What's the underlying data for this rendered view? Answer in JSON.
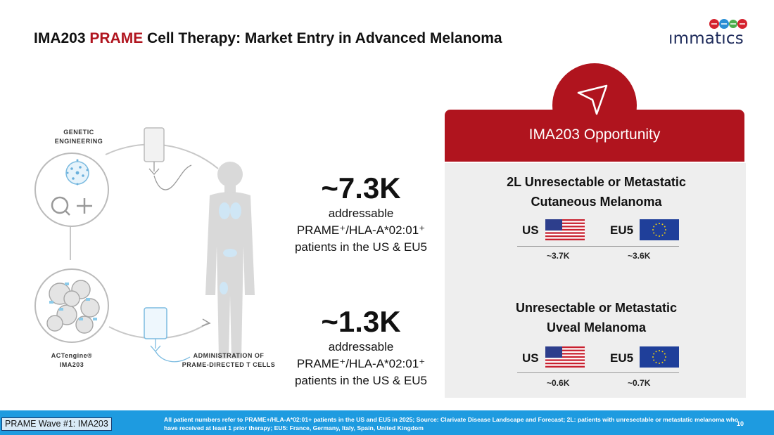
{
  "header": {
    "title_prefix": "IMA203 ",
    "title_accent": "PRAME",
    "title_suffix": " Cell Therapy: Market Entry in Advanced Melanoma",
    "accent_color": "#b0141e"
  },
  "logo": {
    "text": "IMMATICS"
  },
  "illustration": {
    "label_genetic": "GENETIC\nENGINEERING",
    "label_actengine": "ACTengine®\nIMA203",
    "label_administration": "ADMINISTRATION OF\nPRAME-DIRECTED T CELLS"
  },
  "stats": [
    {
      "value": "~7.3K",
      "desc_line1": "addressable",
      "desc_line2": "PRAME⁺/HLA-A*02:01⁺",
      "desc_line3": "patients in the US & EU5"
    },
    {
      "value": "~1.3K",
      "desc_line1": "addressable",
      "desc_line2": "PRAME⁺/HLA-A*02:01⁺",
      "desc_line3": "patients in the US & EU5"
    }
  ],
  "opportunity": {
    "header": "IMA203 Opportunity",
    "icon": "send-arrow-icon",
    "header_color": "#b0141e",
    "sections": [
      {
        "title_line1": "2L Unresectable or Metastatic",
        "title_line2": "Cutaneous Melanoma",
        "us_label": "US",
        "eu_label": "EU5",
        "us_count": "~3.7K",
        "eu_count": "~3.6K"
      },
      {
        "title_line1": "Unresectable or Metastatic",
        "title_line2": "Uveal Melanoma",
        "us_label": "US",
        "eu_label": "EU5",
        "us_count": "~0.6K",
        "eu_count": "~0.7K"
      }
    ]
  },
  "footer": {
    "tag": "PRAME Wave #1: IMA203",
    "note": "All patient numbers refer to PRAME+/HLA-A*02:01+ patients in the US and EU5 in 2025; Source: Clarivate Disease Landscape and Forecast; 2L: patients with unresectable or metastatic melanoma who have received at least 1 prior therapy; EU5: France, Germany, Italy, Spain, United Kingdom",
    "page_number": "10",
    "color": "#1e9be0"
  }
}
